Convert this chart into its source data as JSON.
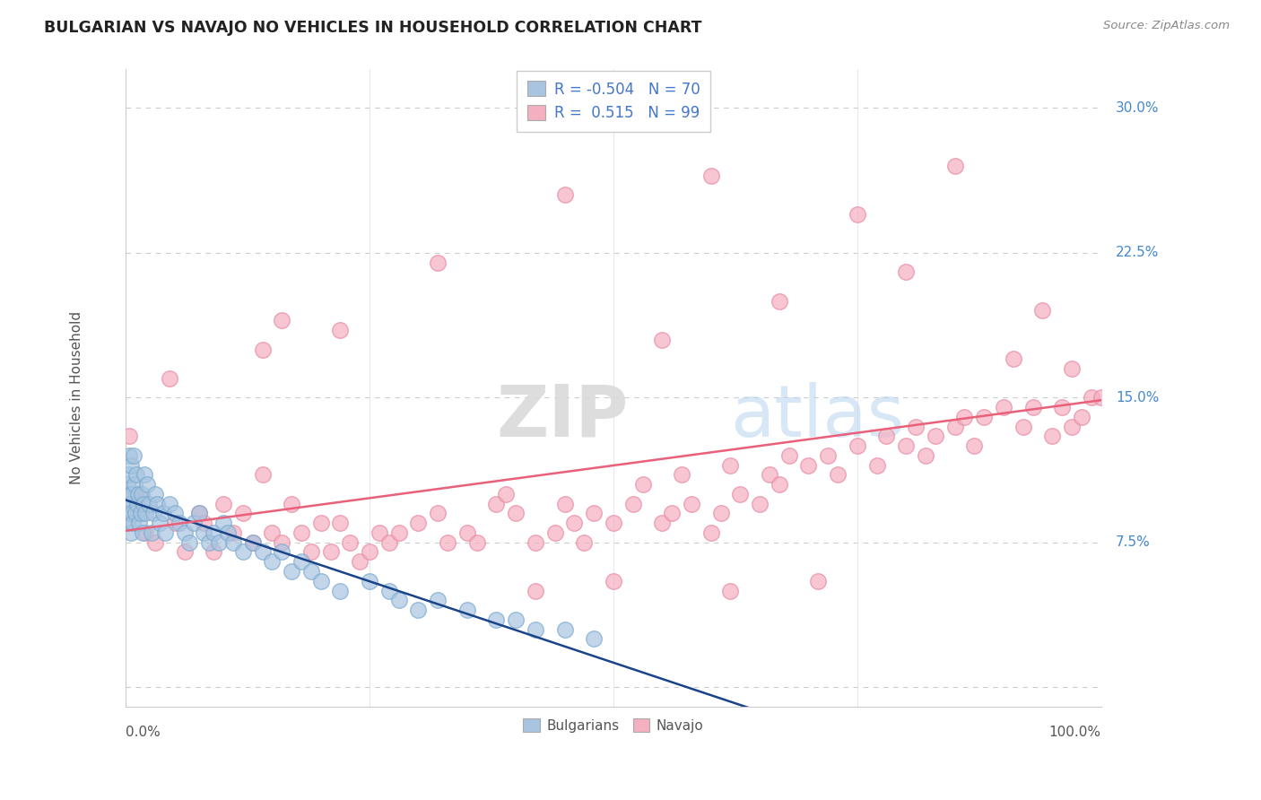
{
  "title": "BULGARIAN VS NAVAJO NO VEHICLES IN HOUSEHOLD CORRELATION CHART",
  "source_text": "Source: ZipAtlas.com",
  "ylabel": "No Vehicles in Household",
  "xlim": [
    0.0,
    100.0
  ],
  "ylim": [
    -1.0,
    32.0
  ],
  "yticks": [
    0.0,
    7.5,
    15.0,
    22.5,
    30.0
  ],
  "ytick_labels": [
    "",
    "7.5%",
    "15.0%",
    "22.5%",
    "30.0%"
  ],
  "xtick_positions": [
    0,
    25,
    50,
    75,
    100
  ],
  "bulgarian_color": "#a8c4e0",
  "bulgarian_edge_color": "#7aaad0",
  "navajo_color": "#f4afc0",
  "navajo_edge_color": "#e888a0",
  "bulgarian_line_color": "#1a4488",
  "navajo_line_color": "#e8607a",
  "background_color": "#ffffff",
  "grid_color": "#cccccc",
  "grid_dash": [
    4,
    4
  ],
  "watermark_zip": "ZIP",
  "watermark_atlas": "atlas",
  "bulgarian_R": -0.504,
  "bulgarian_N": 70,
  "navajo_R": 0.515,
  "navajo_N": 99,
  "legend_R_color": "#e05080",
  "legend_N_color": "#1a4488",
  "bulgarian_x": [
    0.1,
    0.15,
    0.2,
    0.25,
    0.3,
    0.35,
    0.4,
    0.45,
    0.5,
    0.55,
    0.6,
    0.65,
    0.7,
    0.8,
    0.9,
    1.0,
    1.1,
    1.2,
    1.3,
    1.4,
    1.5,
    1.6,
    1.7,
    1.8,
    1.9,
    2.0,
    2.2,
    2.4,
    2.6,
    2.8,
    3.0,
    3.2,
    3.5,
    3.8,
    4.0,
    4.5,
    5.0,
    5.5,
    6.0,
    6.5,
    7.0,
    7.5,
    8.0,
    8.5,
    9.0,
    9.5,
    10.0,
    10.5,
    11.0,
    12.0,
    13.0,
    14.0,
    15.0,
    16.0,
    17.0,
    18.0,
    19.0,
    20.0,
    22.0,
    25.0,
    27.0,
    28.0,
    30.0,
    32.0,
    35.0,
    38.0,
    40.0,
    42.0,
    45.0,
    48.0
  ],
  "bulgarian_y": [
    9.5,
    10.5,
    8.5,
    11.0,
    9.0,
    12.0,
    10.0,
    9.5,
    11.5,
    8.0,
    10.0,
    9.0,
    8.5,
    12.0,
    10.5,
    9.0,
    11.0,
    9.5,
    10.0,
    8.5,
    9.0,
    10.0,
    8.0,
    9.5,
    11.0,
    9.0,
    10.5,
    9.5,
    8.0,
    9.0,
    10.0,
    9.5,
    8.5,
    9.0,
    8.0,
    9.5,
    9.0,
    8.5,
    8.0,
    7.5,
    8.5,
    9.0,
    8.0,
    7.5,
    8.0,
    7.5,
    8.5,
    8.0,
    7.5,
    7.0,
    7.5,
    7.0,
    6.5,
    7.0,
    6.0,
    6.5,
    6.0,
    5.5,
    5.0,
    5.5,
    5.0,
    4.5,
    4.0,
    4.5,
    4.0,
    3.5,
    3.5,
    3.0,
    3.0,
    2.5
  ],
  "navajo_x": [
    0.3,
    1.0,
    2.0,
    3.0,
    4.5,
    5.0,
    6.0,
    7.5,
    8.0,
    9.0,
    10.0,
    11.0,
    12.0,
    13.0,
    14.0,
    15.0,
    16.0,
    17.0,
    18.0,
    19.0,
    20.0,
    21.0,
    22.0,
    23.0,
    24.0,
    25.0,
    26.0,
    27.0,
    28.0,
    30.0,
    32.0,
    33.0,
    35.0,
    36.0,
    38.0,
    39.0,
    40.0,
    42.0,
    44.0,
    45.0,
    46.0,
    47.0,
    48.0,
    50.0,
    52.0,
    53.0,
    55.0,
    56.0,
    57.0,
    58.0,
    60.0,
    61.0,
    62.0,
    63.0,
    65.0,
    66.0,
    67.0,
    68.0,
    70.0,
    72.0,
    73.0,
    75.0,
    77.0,
    78.0,
    80.0,
    81.0,
    82.0,
    83.0,
    85.0,
    86.0,
    87.0,
    88.0,
    90.0,
    92.0,
    93.0,
    95.0,
    96.0,
    97.0,
    98.0,
    99.0,
    100.0,
    16.0,
    14.0,
    22.0,
    32.0,
    45.0,
    55.0,
    60.0,
    67.0,
    75.0,
    80.0,
    85.0,
    91.0,
    94.0,
    97.0,
    42.0,
    50.0,
    62.0,
    71.0
  ],
  "navajo_y": [
    13.0,
    10.0,
    8.0,
    7.5,
    16.0,
    8.5,
    7.0,
    9.0,
    8.5,
    7.0,
    9.5,
    8.0,
    9.0,
    7.5,
    11.0,
    8.0,
    7.5,
    9.5,
    8.0,
    7.0,
    8.5,
    7.0,
    8.5,
    7.5,
    6.5,
    7.0,
    8.0,
    7.5,
    8.0,
    8.5,
    9.0,
    7.5,
    8.0,
    7.5,
    9.5,
    10.0,
    9.0,
    7.5,
    8.0,
    9.5,
    8.5,
    7.5,
    9.0,
    8.5,
    9.5,
    10.5,
    8.5,
    9.0,
    11.0,
    9.5,
    8.0,
    9.0,
    11.5,
    10.0,
    9.5,
    11.0,
    10.5,
    12.0,
    11.5,
    12.0,
    11.0,
    12.5,
    11.5,
    13.0,
    12.5,
    13.5,
    12.0,
    13.0,
    13.5,
    14.0,
    12.5,
    14.0,
    14.5,
    13.5,
    14.5,
    13.0,
    14.5,
    13.5,
    14.0,
    15.0,
    15.0,
    19.0,
    17.5,
    18.5,
    22.0,
    25.5,
    18.0,
    26.5,
    20.0,
    24.5,
    21.5,
    27.0,
    17.0,
    19.5,
    16.5,
    5.0,
    5.5,
    5.0,
    5.5
  ]
}
